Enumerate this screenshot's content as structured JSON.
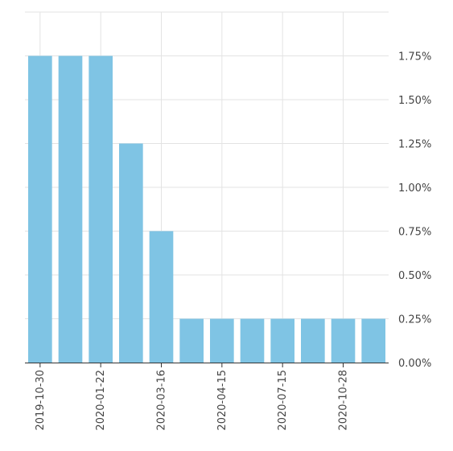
{
  "chart_data": {
    "type": "bar",
    "title": "",
    "xlabel": "",
    "ylabel": "",
    "y_axis_side": "right",
    "grid": true,
    "ylim": [
      0,
      2.0
    ],
    "y_ticks": [
      0,
      0.25,
      0.5,
      0.75,
      1.0,
      1.25,
      1.5,
      1.75
    ],
    "y_tick_labels": [
      "0.00%",
      "0.25%",
      "0.50%",
      "0.75%",
      "1.00%",
      "1.25%",
      "1.50%",
      "1.75%"
    ],
    "categories": [
      "2019-10-30",
      "",
      "2020-01-22",
      "",
      "2020-03-16",
      "",
      "2020-04-15",
      "",
      "2020-07-15",
      "",
      "2020-10-28",
      ""
    ],
    "labeled_category_indices": [
      0,
      2,
      4,
      6,
      8,
      10
    ],
    "values": [
      1.75,
      1.75,
      1.75,
      1.25,
      0.75,
      0.25,
      0.25,
      0.25,
      0.25,
      0.25,
      0.25,
      0.25
    ],
    "bar_color": "#7fc4e4",
    "grid_color": "#e3e3e3"
  }
}
